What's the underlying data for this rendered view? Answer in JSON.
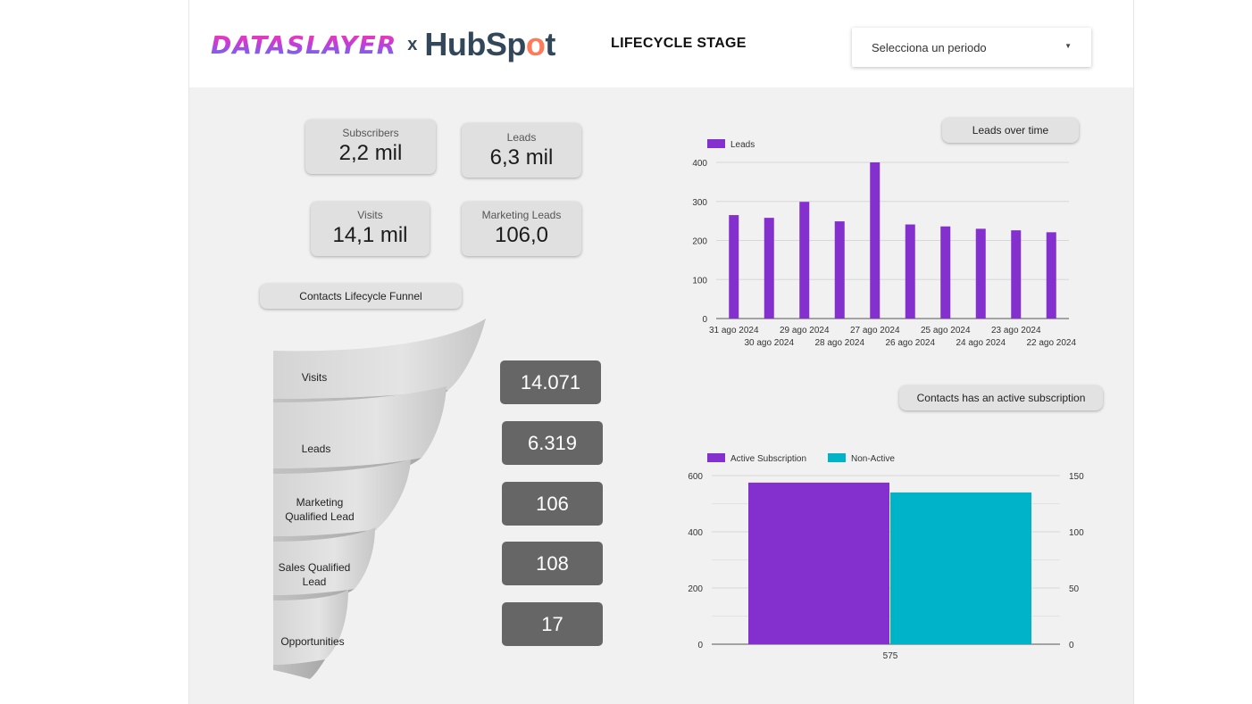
{
  "header": {
    "brand_left": "DATASLAYER",
    "brand_x": "x",
    "brand_hub": "HubSp",
    "brand_sprocket": "o",
    "brand_t": "t",
    "title": "LIFECYCLE STAGE",
    "period_placeholder": "Selecciona un periodo",
    "period_caret_icon": "caret-down-icon"
  },
  "kpis": {
    "subscribers": {
      "label": "Subscribers",
      "value": "2,2 mil"
    },
    "leads": {
      "label": "Leads",
      "value": "6,3 mil"
    },
    "visits": {
      "label": "Visits",
      "value": "14,1 mil"
    },
    "marketing_leads": {
      "label": "Marketing Leads",
      "value": "106,0"
    }
  },
  "funnel": {
    "title": "Contacts Lifecycle Funnel",
    "stages": [
      {
        "label": "Visits",
        "value": "14.071"
      },
      {
        "label": "Leads",
        "value": "6.319"
      },
      {
        "label": "Marketing Qualified Lead",
        "value": "106"
      },
      {
        "label": "Sales Qualified Lead",
        "value": "108"
      },
      {
        "label": "Opportunities",
        "value": "17"
      }
    ]
  },
  "chart_data": [
    {
      "type": "bar",
      "title": "Leads over time",
      "legend": [
        "Leads"
      ],
      "legend_position": "top-left",
      "categories": [
        "31 ago 2024",
        "30 ago 2024",
        "29 ago 2024",
        "28 ago 2024",
        "27 ago 2024",
        "26 ago 2024",
        "25 ago 2024",
        "24 ago 2024",
        "23 ago 2024",
        "22 ago 2024"
      ],
      "series": [
        {
          "name": "Leads",
          "values": [
            265,
            258,
            299,
            249,
            400,
            241,
            236,
            230,
            226,
            221
          ],
          "color": "#8430ce"
        }
      ],
      "ylim": [
        0,
        400
      ],
      "yticks": [
        0,
        100,
        200,
        300,
        400
      ],
      "grid": true
    },
    {
      "type": "bar",
      "title": "Contacts has an active subscription",
      "legend": [
        "Active Subscription",
        "Non-Active"
      ],
      "legend_position": "top-left",
      "categories": [
        "575"
      ],
      "series": [
        {
          "name": "Active Subscription",
          "values": [
            575
          ],
          "axis": "left",
          "color": "#8430ce"
        },
        {
          "name": "Non-Active",
          "values": [
            135
          ],
          "axis": "right",
          "color": "#00b3c9"
        }
      ],
      "ylim_left": [
        0,
        600
      ],
      "yticks_left": [
        0,
        200,
        400,
        600
      ],
      "ylim_right": [
        0,
        150
      ],
      "yticks_right": [
        0,
        50,
        100,
        150
      ],
      "grid": true
    }
  ]
}
